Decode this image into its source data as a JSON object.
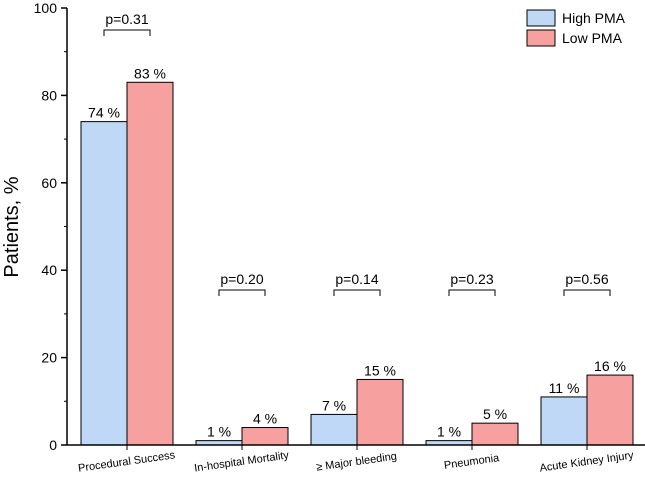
{
  "chart_data": {
    "type": "bar",
    "title": "",
    "xlabel": "",
    "ylabel": "Patients, %",
    "ylim": [
      0,
      100
    ],
    "yticks": [
      0,
      20,
      40,
      60,
      80,
      100
    ],
    "categories": [
      "Procedural Success",
      "In-hospital Mortality",
      "≥ Major bleeding",
      "Pneumonia",
      "Acute Kidney Injury"
    ],
    "series": [
      {
        "name": "High PMA",
        "color": "#bed8f5",
        "values": [
          74,
          1,
          7,
          1,
          11
        ],
        "labels": [
          "74 %",
          "1 %",
          "7 %",
          "1 %",
          "11 %"
        ]
      },
      {
        "name": "Low PMA",
        "color": "#f6a0a0",
        "values": [
          83,
          4,
          15,
          5,
          16
        ],
        "labels": [
          "83 %",
          "4 %",
          "15 %",
          "5 %",
          "16 %"
        ]
      }
    ],
    "p_values": [
      "p=0.31",
      "p=0.20",
      "p=0.14",
      "p=0.23",
      "p=0.56"
    ],
    "legend_position": "top-right",
    "grid": false
  }
}
